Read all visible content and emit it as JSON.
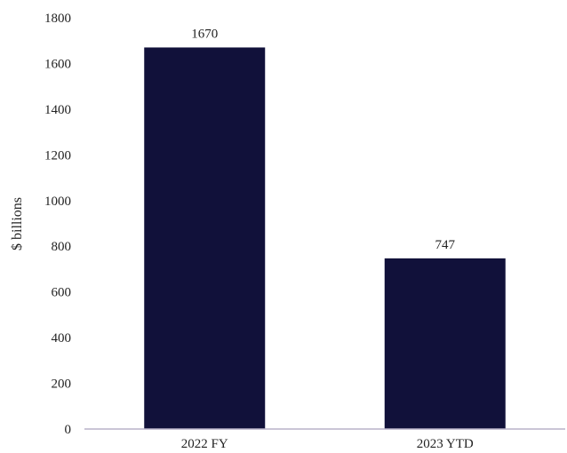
{
  "chart_data": {
    "type": "bar",
    "title": "",
    "xlabel": "",
    "ylabel": "$ billions",
    "categories": [
      "2022 FY",
      "2023 YTD"
    ],
    "values": [
      1670,
      747
    ],
    "data_labels": [
      "1670",
      "747"
    ],
    "ylim": [
      0,
      1800
    ],
    "yticks": [
      0,
      200,
      400,
      600,
      800,
      1000,
      1200,
      1400,
      1600,
      1800
    ],
    "grid": false,
    "legend": "none",
    "colors": {
      "bar": "#11113a",
      "axis": "#b8b2c8",
      "text": "#222222"
    }
  }
}
